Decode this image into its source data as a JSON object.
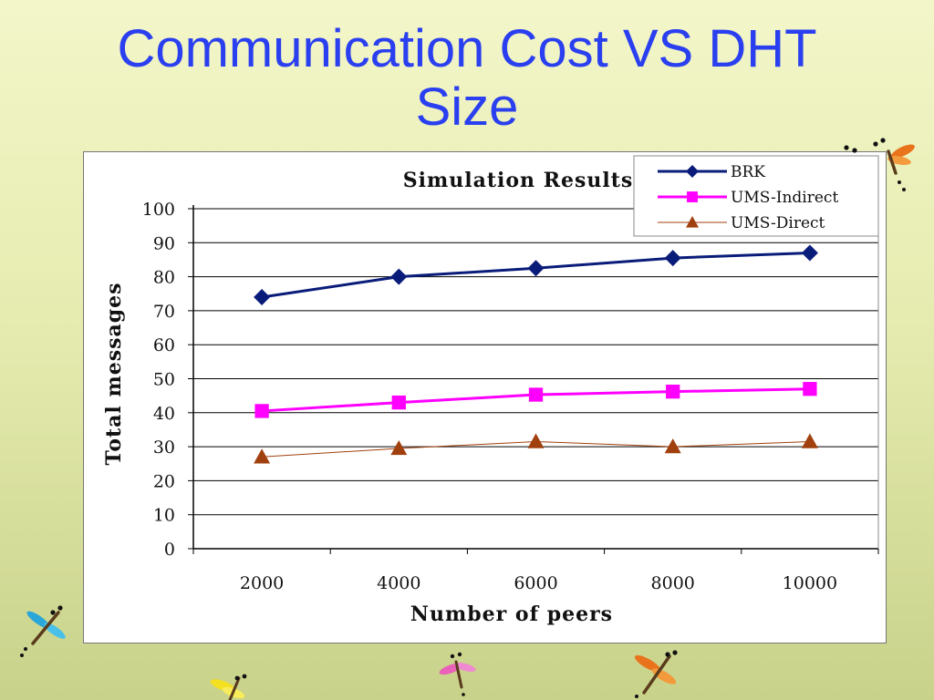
{
  "slide": {
    "title_line1": "Communication Cost VS DHT",
    "title_line2": "Size"
  },
  "chart_data": {
    "type": "line",
    "title": "Simulation Results",
    "xlabel": "Number of peers",
    "ylabel": "Total messages",
    "categories": [
      "2000",
      "4000",
      "6000",
      "8000",
      "10000"
    ],
    "ylim": [
      0,
      100
    ],
    "yticks": [
      "0",
      "10",
      "20",
      "30",
      "40",
      "50",
      "60",
      "70",
      "80",
      "90",
      "100"
    ],
    "grid": true,
    "legend_position": "top-right",
    "series": [
      {
        "name": "BRK",
        "values": [
          74,
          80,
          82.5,
          85.5,
          87
        ],
        "color": "#0a1c7a",
        "marker": "diamond"
      },
      {
        "name": "UMS-Indirect",
        "values": [
          40.5,
          43,
          45.3,
          46.2,
          47
        ],
        "color": "#ff00ff",
        "marker": "square"
      },
      {
        "name": "UMS-Direct",
        "values": [
          27,
          29.5,
          31.5,
          30,
          31.5
        ],
        "color": "#a0400e",
        "marker": "triangle"
      }
    ]
  },
  "decorations": {
    "icon": "dragonfly-icon",
    "colors": [
      "#e8731c",
      "#2aa6d8",
      "#f3e020",
      "#e860b8"
    ]
  }
}
